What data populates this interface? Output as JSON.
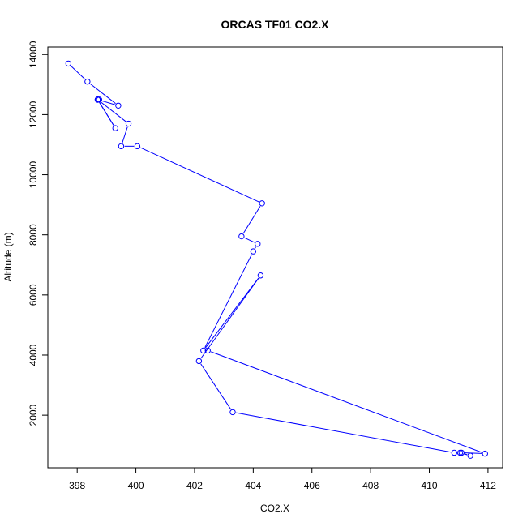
{
  "chart_data": {
    "type": "line",
    "title": "ORCAS TF01 CO2.X",
    "xlabel": "CO2.X",
    "ylabel": "Altitude (m)",
    "xlim": [
      397,
      412.5
    ],
    "ylim": [
      250,
      14250
    ],
    "x_ticks": [
      398,
      400,
      402,
      404,
      406,
      408,
      410,
      412
    ],
    "y_ticks": [
      2000,
      4000,
      6000,
      8000,
      10000,
      12000,
      14000
    ],
    "grid": false,
    "series_color": "#0000ff",
    "series": [
      {
        "x": [
          397.7,
          398.35,
          399.4,
          398.7,
          398.75,
          398.7,
          399.3,
          398.7,
          399.75,
          399.5,
          400.05,
          404.3,
          403.6,
          404.15,
          404.0,
          402.3,
          404.25,
          402.15,
          403.3,
          410.85,
          411.05,
          411.4,
          411.1,
          411.9,
          402.45
        ],
        "y": [
          13700,
          13100,
          12300,
          12500,
          12500,
          12500,
          11550,
          12500,
          11700,
          10950,
          10950,
          9050,
          7950,
          7700,
          7450,
          4150,
          6650,
          3800,
          2100,
          750,
          750,
          650,
          750,
          720,
          4150
        ]
      }
    ]
  }
}
